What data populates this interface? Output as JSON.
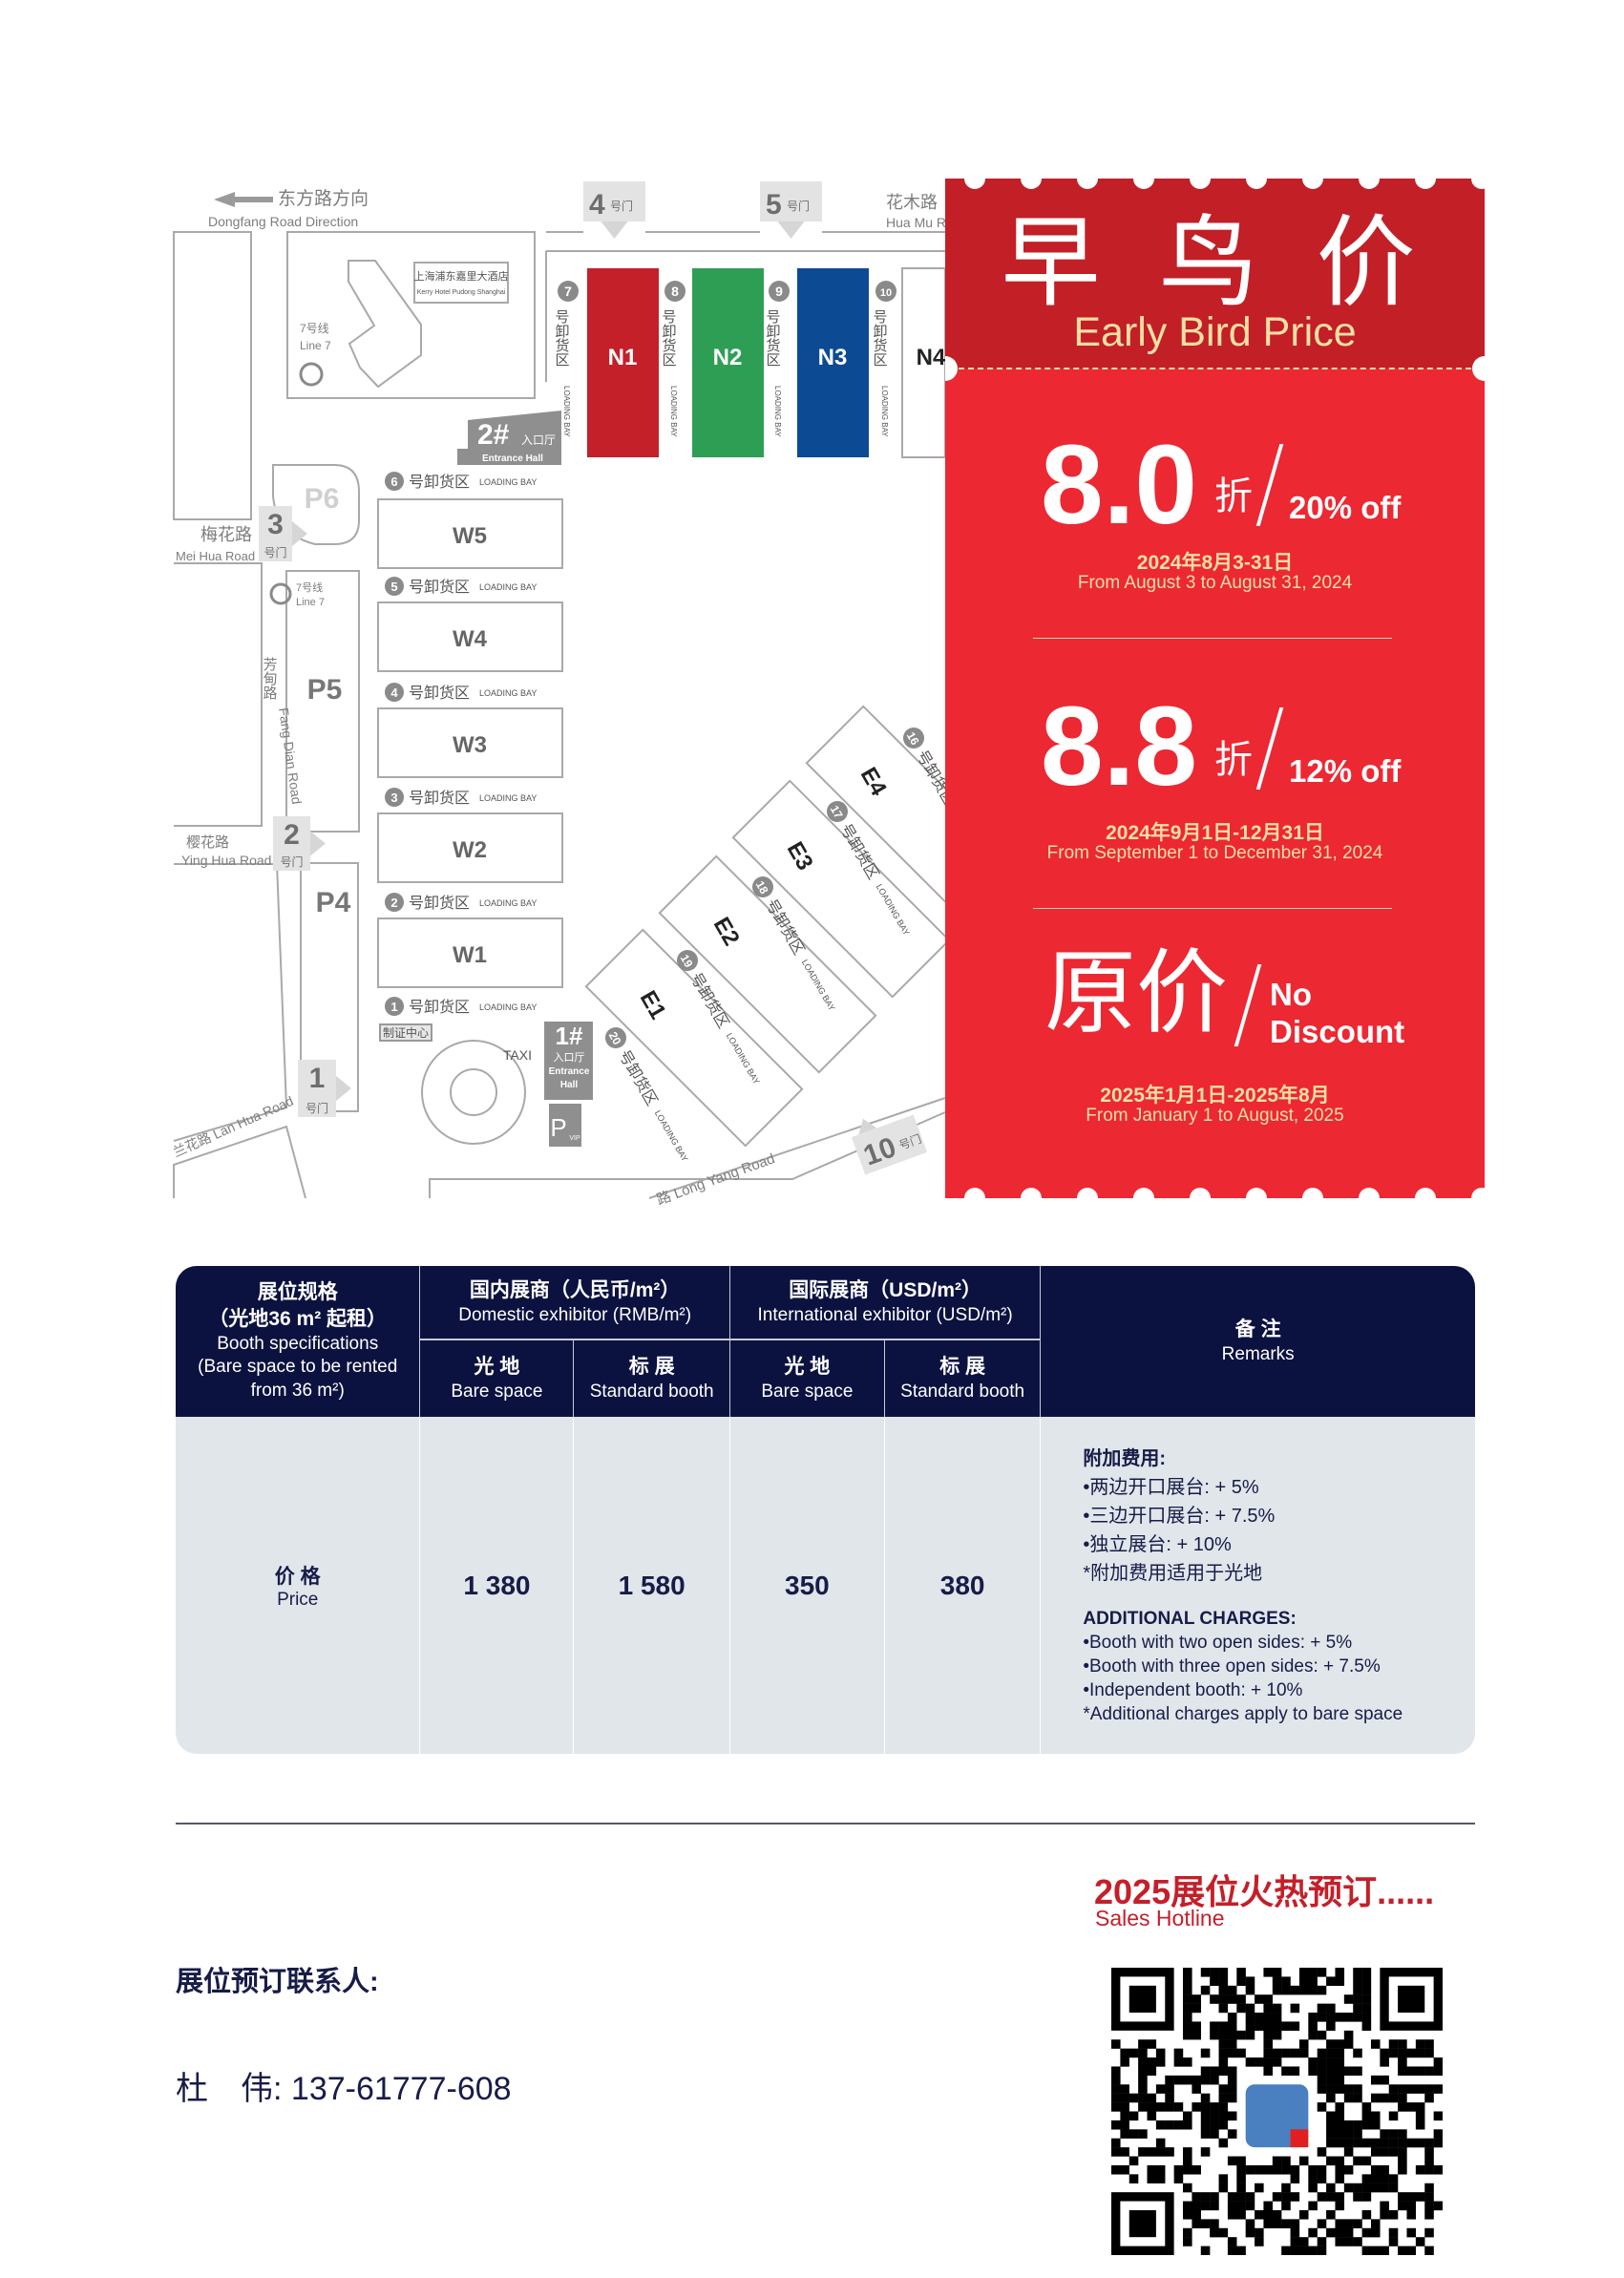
{
  "map": {
    "dongfang_cn": "东方路方向",
    "dongfang_en": "Dongfang Road Direction",
    "huamu_cn": "花木路",
    "huamu_en": "Hua Mu Road",
    "meihua_cn": "梅花路",
    "meihua_en": "Mei Hua Road",
    "yinghua_cn": "樱花路",
    "yinghua_en": "Ying Hua Road",
    "lanhua": "兰花路 Lan Hua Road",
    "fangdian_cn": "芳甸路",
    "fangdian_en": "Fang Dian Road",
    "longyang": "路  Long Yang Road",
    "gate_suffix": "号门",
    "gates": [
      "4",
      "5",
      "3",
      "2",
      "1",
      "10"
    ],
    "hotel_cn": "上海浦东嘉里大酒店",
    "hotel_en": "Kerry Hotel Pudong Shanghai",
    "metro_cn": "7号线",
    "metro_en": "Line 7",
    "halls_n": [
      {
        "name": "N1",
        "color": "#c3202a"
      },
      {
        "name": "N2",
        "color": "#2f9e55"
      },
      {
        "name": "N3",
        "color": "#0d4a94"
      },
      {
        "name": "N4",
        "color": "#ffffff"
      }
    ],
    "halls_w": [
      "W5",
      "W4",
      "W3",
      "W2",
      "W1"
    ],
    "halls_e": [
      "E1",
      "E2",
      "E3",
      "E4"
    ],
    "loading_cn": "号卸货区",
    "loading_en": "LOADING BAY",
    "loading_n": [
      "7",
      "8",
      "9",
      "10"
    ],
    "loading_w": [
      "6",
      "5",
      "4",
      "3",
      "2",
      "1"
    ],
    "loading_e": [
      "20",
      "19",
      "18",
      "17",
      "16"
    ],
    "parking": [
      "P6",
      "P5",
      "P4"
    ],
    "parking_vip": {
      "p": "P",
      "sub": "VIP"
    },
    "entrance2": {
      "num": "2#",
      "cn": "入口厅",
      "en": "Entrance Hall"
    },
    "entrance1": {
      "num": "1#",
      "cn": "入口厅",
      "en1": "Entrance",
      "en2": "Hall"
    },
    "permit": "制证中心",
    "taxi": "TAXI"
  },
  "promo": {
    "title_cn": "早 鸟 价",
    "title_en": "Early Bird Price",
    "tiers": [
      {
        "big": "8.0",
        "zhe": "折",
        "off": "20% off",
        "date_cn": "2024年8月3-31日",
        "date_en": "From August 3 to August 31, 2024"
      },
      {
        "big": "8.8",
        "zhe": "折",
        "off": "12% off",
        "date_cn": "2024年9月1日-12月31日",
        "date_en": "From September 1 to December 31, 2024"
      }
    ],
    "full": {
      "big": "原价",
      "off1": "No",
      "off2": "Discount",
      "date_cn": "2025年1月1日-2025年8月",
      "date_en": "From January 1 to August, 2025"
    },
    "colors": {
      "top": "#c21f27",
      "body": "#ec2832",
      "cream": "#f6dfa4"
    }
  },
  "table": {
    "spec_h": {
      "l1": "展位规格",
      "l2": "（光地36 m² 起租）",
      "l3": "Booth specifications",
      "l4": "(Bare space to be rented",
      "l5": "from 36 m²)"
    },
    "domestic": {
      "cn": "国内展商（人民币/m²）",
      "en": "Domestic exhibitor (RMB/m²)"
    },
    "international": {
      "cn": "国际展商（USD/m²）",
      "en": "International exhibitor (USD/m²)"
    },
    "sub": [
      {
        "cn": "光 地",
        "en": "Bare space"
      },
      {
        "cn": "标 展",
        "en": "Standard booth"
      },
      {
        "cn": "光 地",
        "en": "Bare space"
      },
      {
        "cn": "标 展",
        "en": "Standard booth"
      }
    ],
    "remarks_h": {
      "cn": "备 注",
      "en": "Remarks"
    },
    "row_label": {
      "cn": "价 格",
      "en": "Price"
    },
    "values": [
      "1 380",
      "1 580",
      "350",
      "380"
    ],
    "remarks": {
      "cn_title": "附加费用:",
      "cn_items": [
        "•两边开口展台: + 5%",
        "•三边开口展台: + 7.5%",
        "•独立展台: + 10%",
        "*附加费用适用于光地"
      ],
      "en_title": "ADDITIONAL CHARGES:",
      "en_items": [
        "•Booth with two open sides: + 5%",
        "•Booth with three open sides: + 7.5%",
        "•Independent booth: + 10%",
        "*Additional charges apply to bare space"
      ]
    },
    "colors": {
      "header": "#0c1240",
      "body": "#e1e6eb"
    }
  },
  "footer": {
    "hot_cn": "2025展位火热预订......",
    "hotline_en": "Sales Hotline",
    "contact_label": "展位预订联系人:",
    "contact_name": "杜　伟:",
    "contact_phone": "137-61777-608"
  }
}
